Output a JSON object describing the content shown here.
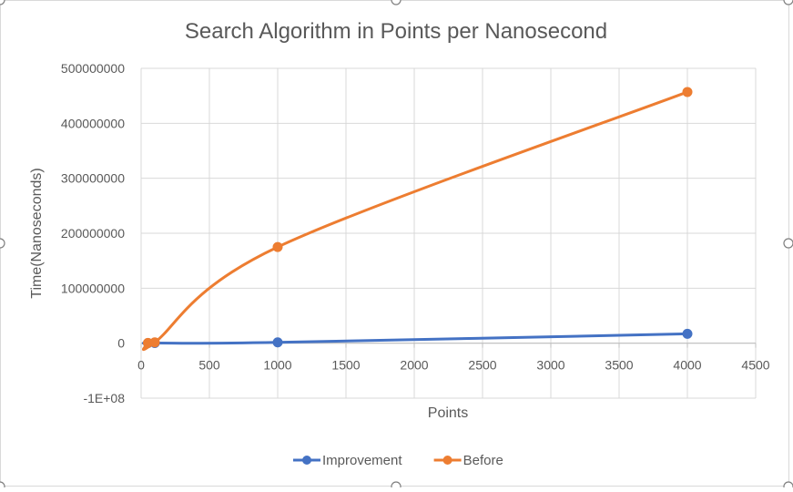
{
  "chart_data": {
    "type": "line",
    "title": "Search Algorithm in Points per Nanosecond",
    "xlabel": "Points",
    "ylabel": "Time(Nanoseconds)",
    "xlim": [
      0,
      4500
    ],
    "ylim": [
      -100000000,
      500000000
    ],
    "x_ticks": [
      "0",
      "500",
      "1000",
      "1500",
      "2000",
      "2500",
      "3000",
      "3500",
      "4000",
      "4500"
    ],
    "y_ticks": [
      "-1E+08",
      "0",
      "100000000",
      "200000000",
      "300000000",
      "400000000",
      "500000000"
    ],
    "grid": true,
    "smooth": true,
    "legend_position": "bottom",
    "series": [
      {
        "name": "Improvement",
        "color": "#4472c4",
        "x": [
          50,
          100,
          1000,
          4000
        ],
        "y": [
          100000,
          200000,
          1500000,
          17000000
        ]
      },
      {
        "name": "Before",
        "color": "#ed7d31",
        "x": [
          50,
          100,
          1000,
          4000
        ],
        "y": [
          500000,
          1500000,
          175000000,
          457000000
        ]
      }
    ]
  }
}
